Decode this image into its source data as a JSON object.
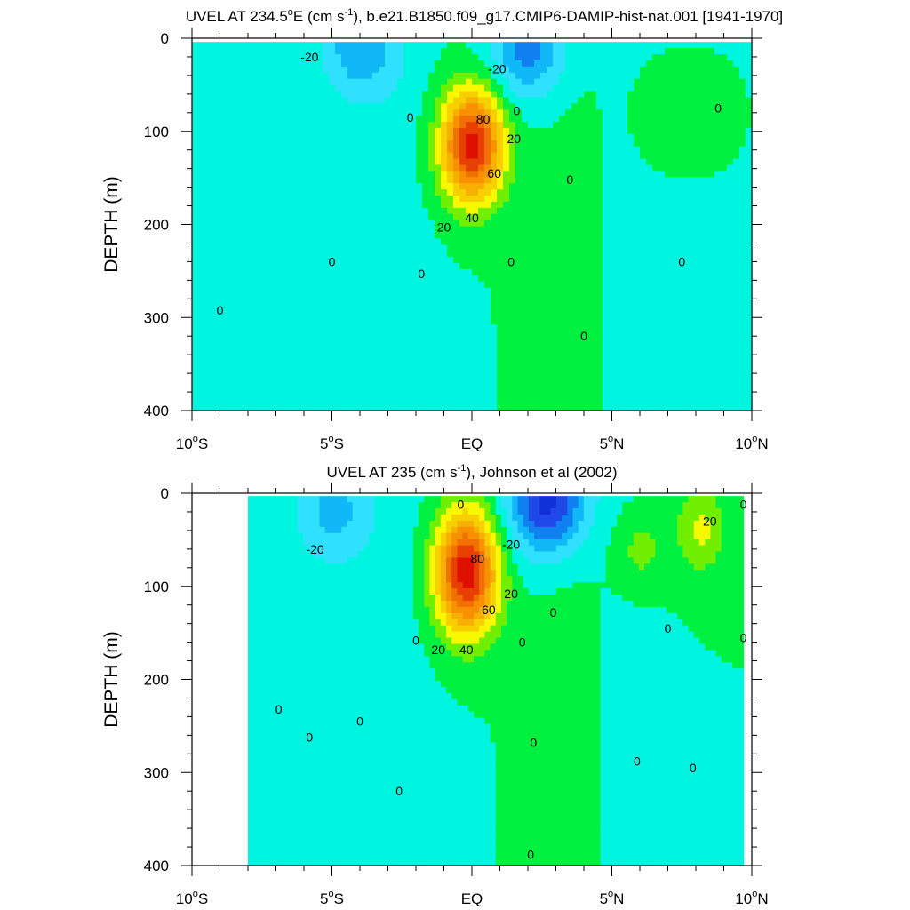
{
  "chart_data": [
    {
      "type": "contour",
      "title": {
        "prefix": "UVEL AT 234.5",
        "deg": "o",
        "mid": "E (cm s",
        "sup": "-1",
        "suffix": "), b.e21.B1850.f09_g17.CMIP6-DAMIP-hist-nat.001 [1941-1970]"
      },
      "ylabel": "DEPTH (m)",
      "x_ticks": [
        {
          "value": -10,
          "main": "10",
          "deg": "o",
          "tail": "S"
        },
        {
          "value": -5,
          "main": "5",
          "deg": "o",
          "tail": "S"
        },
        {
          "value": 0,
          "main": "EQ",
          "deg": "",
          "tail": ""
        },
        {
          "value": 5,
          "main": "5",
          "deg": "o",
          "tail": "N"
        },
        {
          "value": 10,
          "main": "10",
          "deg": "o",
          "tail": "N"
        }
      ],
      "y_ticks": [
        0,
        100,
        200,
        300,
        400
      ],
      "xlim": [
        -10,
        10
      ],
      "ylim": [
        0,
        400
      ],
      "y_reversed": true,
      "x_units": "latitude",
      "y_units": "m",
      "contour_interval": 10,
      "features": [
        {
          "kind": "jet_core",
          "lat": 0.0,
          "depth": 115,
          "max": 85,
          "lat_halfwidth": 1.1,
          "depth_halfwidth": 60
        },
        {
          "kind": "surface_westward",
          "lat": -4.0,
          "depth": 10,
          "min": -25
        },
        {
          "kind": "surface_westward",
          "lat": 2.0,
          "depth": 10,
          "min": -35
        },
        {
          "kind": "eastward_patch",
          "lat": 6.5,
          "depth": 80,
          "max": 8
        }
      ],
      "contour_labels": [
        {
          "text": "-20",
          "lat": -5.8,
          "depth": 20
        },
        {
          "text": "-20",
          "lat": 0.9,
          "depth": 33
        },
        {
          "text": "0",
          "lat": -2.2,
          "depth": 85
        },
        {
          "text": "0",
          "lat": 1.6,
          "depth": 78
        },
        {
          "text": "80",
          "lat": 0.4,
          "depth": 87
        },
        {
          "text": "20",
          "lat": 1.5,
          "depth": 108
        },
        {
          "text": "60",
          "lat": 0.8,
          "depth": 145
        },
        {
          "text": "40",
          "lat": 0.0,
          "depth": 193
        },
        {
          "text": "20",
          "lat": -1.0,
          "depth": 203
        },
        {
          "text": "0",
          "lat": 8.8,
          "depth": 75
        },
        {
          "text": "0",
          "lat": 3.5,
          "depth": 152
        },
        {
          "text": "0",
          "lat": -5.0,
          "depth": 240
        },
        {
          "text": "0",
          "lat": -1.8,
          "depth": 253
        },
        {
          "text": "0",
          "lat": 1.4,
          "depth": 240
        },
        {
          "text": "0",
          "lat": 7.5,
          "depth": 240
        },
        {
          "text": "0",
          "lat": -9.0,
          "depth": 292
        },
        {
          "text": "0",
          "lat": 4.0,
          "depth": 320
        }
      ]
    },
    {
      "type": "contour",
      "title": {
        "prefix": "UVEL AT 235",
        "deg": "",
        "mid": " (cm s",
        "sup": "-1",
        "suffix": "), Johnson et al (2002)"
      },
      "ylabel": "DEPTH (m)",
      "x_ticks": [
        {
          "value": -10,
          "main": "10",
          "deg": "o",
          "tail": "S"
        },
        {
          "value": -5,
          "main": "5",
          "deg": "o",
          "tail": "S"
        },
        {
          "value": 0,
          "main": "EQ",
          "deg": "",
          "tail": ""
        },
        {
          "value": 5,
          "main": "5",
          "deg": "o",
          "tail": "N"
        },
        {
          "value": 10,
          "main": "10",
          "deg": "o",
          "tail": "N"
        }
      ],
      "y_ticks": [
        0,
        100,
        200,
        300,
        400
      ],
      "xlim": [
        -10,
        10
      ],
      "ylim": [
        0,
        400
      ],
      "y_reversed": true,
      "x_units": "latitude",
      "y_units": "m",
      "contour_interval": 10,
      "data_lat_range": [
        -8,
        9.7
      ],
      "features": [
        {
          "kind": "jet_core",
          "lat": -0.2,
          "depth": 85,
          "max": 88,
          "lat_halfwidth": 1.1,
          "depth_halfwidth": 65
        },
        {
          "kind": "surface_westward",
          "lat": 2.7,
          "depth": 10,
          "min": -55
        },
        {
          "kind": "surface_westward",
          "lat": -5.0,
          "depth": 20,
          "min": -22
        },
        {
          "kind": "eastward_patch",
          "lat": 8.2,
          "depth": 40,
          "max": 22
        },
        {
          "kind": "eastward_patch",
          "lat": 6.0,
          "depth": 60,
          "max": 15
        }
      ],
      "contour_labels": [
        {
          "text": "0",
          "lat": -0.4,
          "depth": 12
        },
        {
          "text": "-20",
          "lat": -5.6,
          "depth": 60
        },
        {
          "text": "-20",
          "lat": 1.4,
          "depth": 55
        },
        {
          "text": "80",
          "lat": 0.2,
          "depth": 70
        },
        {
          "text": "20",
          "lat": 1.4,
          "depth": 108
        },
        {
          "text": "60",
          "lat": 0.6,
          "depth": 125
        },
        {
          "text": "40",
          "lat": -0.2,
          "depth": 168
        },
        {
          "text": "20",
          "lat": -1.2,
          "depth": 168
        },
        {
          "text": "0",
          "lat": -2.0,
          "depth": 158
        },
        {
          "text": "0",
          "lat": 1.8,
          "depth": 160
        },
        {
          "text": "0",
          "lat": 2.9,
          "depth": 128
        },
        {
          "text": "20",
          "lat": 8.5,
          "depth": 30
        },
        {
          "text": "0",
          "lat": 9.7,
          "depth": 12
        },
        {
          "text": "0",
          "lat": 9.7,
          "depth": 155
        },
        {
          "text": "0",
          "lat": 7.0,
          "depth": 145
        },
        {
          "text": "0",
          "lat": -6.9,
          "depth": 232
        },
        {
          "text": "0",
          "lat": -5.8,
          "depth": 262
        },
        {
          "text": "0",
          "lat": -4.0,
          "depth": 245
        },
        {
          "text": "0",
          "lat": 2.2,
          "depth": 268
        },
        {
          "text": "0",
          "lat": 5.9,
          "depth": 288
        },
        {
          "text": "0",
          "lat": 7.9,
          "depth": 295
        },
        {
          "text": "0",
          "lat": -2.6,
          "depth": 320
        },
        {
          "text": "0",
          "lat": 2.1,
          "depth": 388
        }
      ]
    }
  ]
}
